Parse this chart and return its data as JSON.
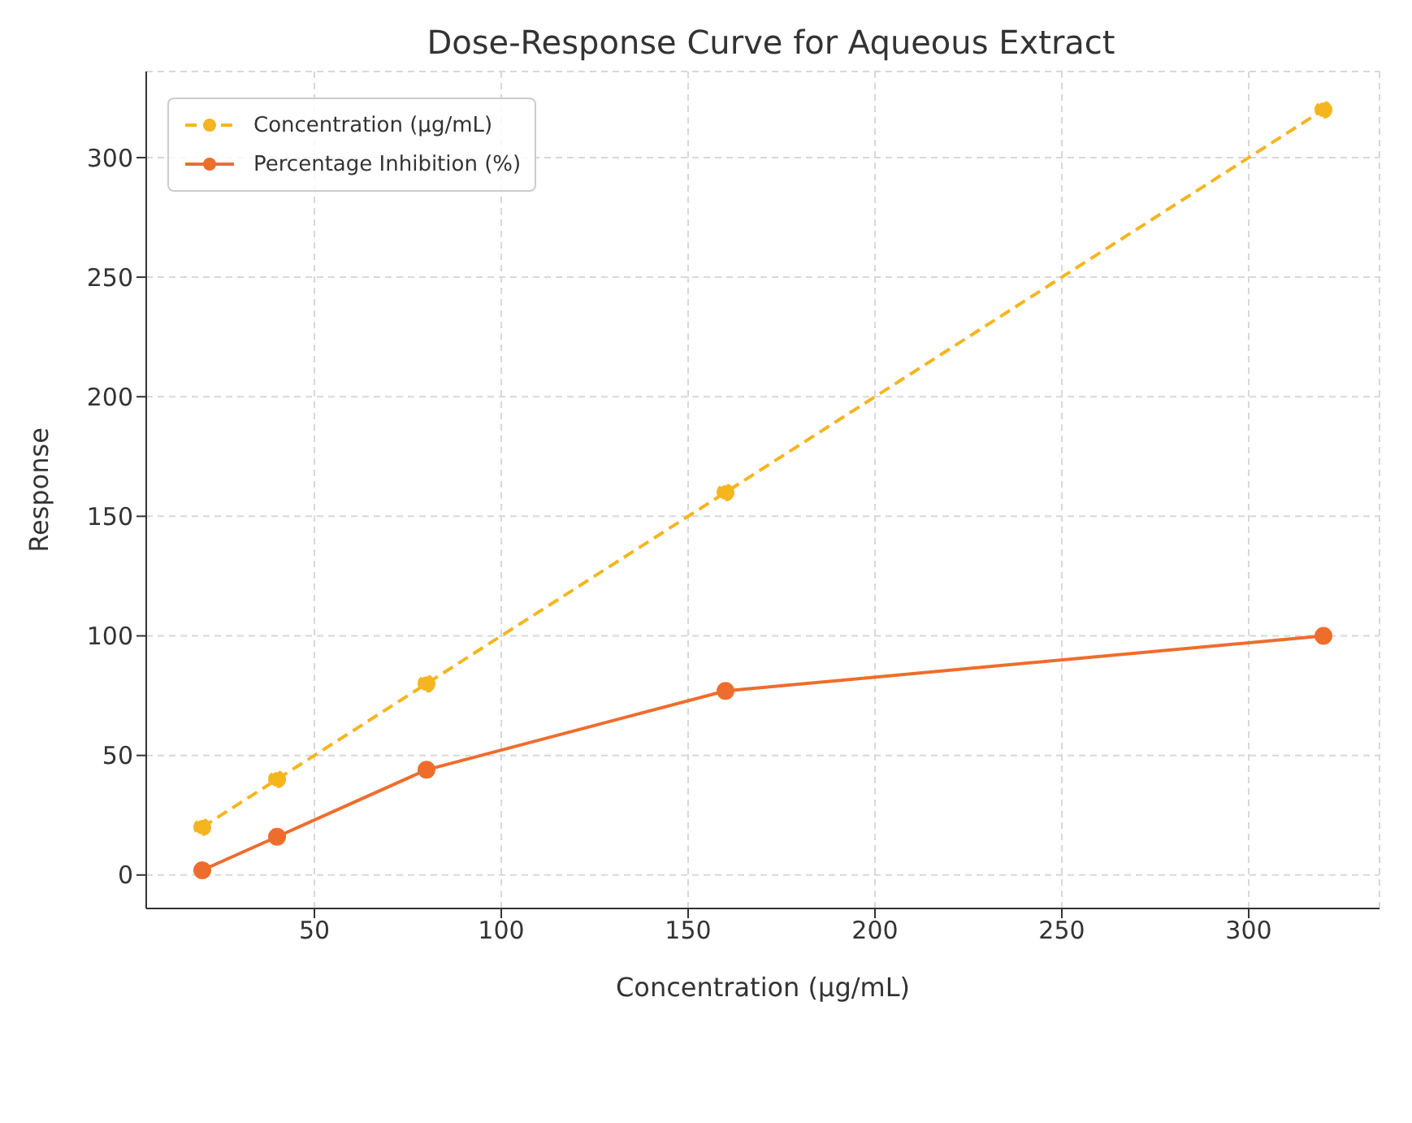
{
  "chart_data": {
    "type": "line",
    "title": "Dose-Response Curve for Aqueous Extract",
    "xlabel": "Concentration (µg/mL)",
    "ylabel": "Response",
    "x": [
      20,
      40,
      80,
      160,
      320
    ],
    "series": [
      {
        "name": "Concentration (µg/mL)",
        "color": "#f5b51e",
        "values": [
          20,
          40,
          80,
          160,
          320
        ],
        "line_style": "dashed"
      },
      {
        "name": "Percentage Inhibition (%)",
        "color": "#ee6d2d",
        "values": [
          2,
          16,
          44,
          77,
          100
        ],
        "line_style": "solid"
      }
    ],
    "xlim": [
      5,
      335
    ],
    "ylim": [
      -14,
      336
    ],
    "xticks": [
      50,
      100,
      150,
      200,
      250,
      300
    ],
    "yticks": [
      0,
      50,
      100,
      150,
      200,
      250,
      300
    ],
    "grid": true,
    "legend": "top left",
    "marker": "circle"
  }
}
